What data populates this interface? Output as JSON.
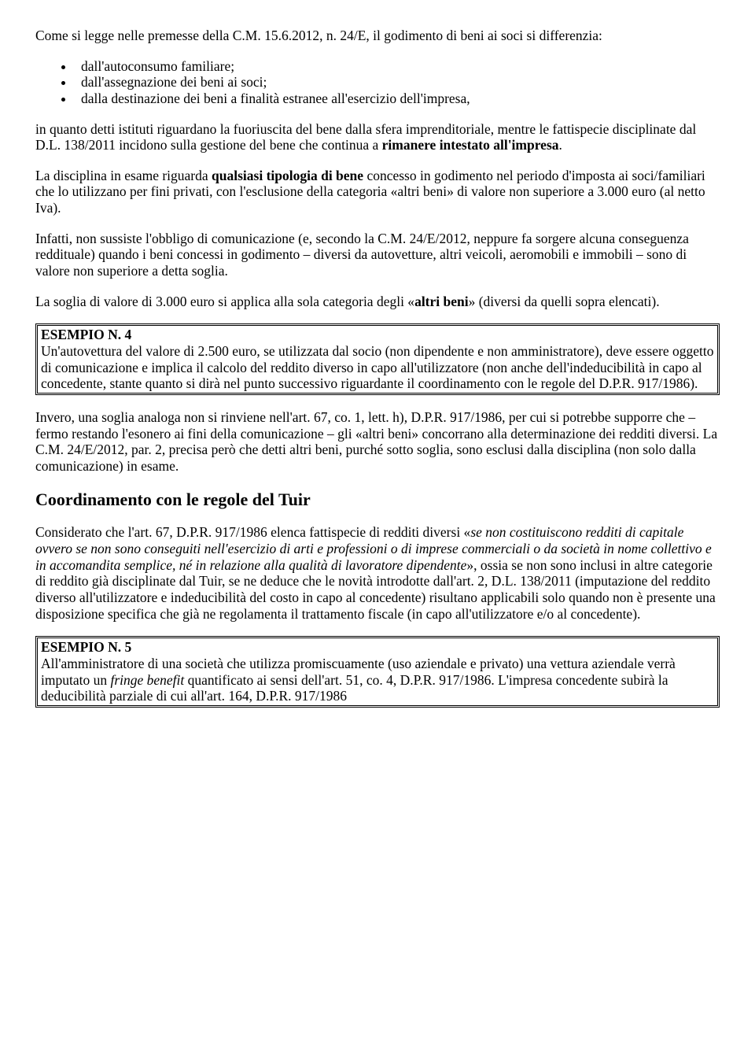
{
  "p1": "Come si legge nelle premesse della C.M. 15.6.2012, n. 24/E, il godimento di beni ai soci si differenzia:",
  "bullets": {
    "b1": "dall'autoconsumo familiare;",
    "b2": "dall'assegnazione dei beni ai soci;",
    "b3": "dalla destinazione dei beni a finalità estranee all'esercizio dell'impresa,"
  },
  "p2a": "in quanto detti istituti riguardano la fuoriuscita del bene dalla sfera imprenditoriale, mentre le fattispecie disciplinate dal D.L. 138/2011 incidono sulla gestione del bene che continua a ",
  "p2b": "rimanere intestato all'impresa",
  "p2c": ".",
  "p3a": "La disciplina in esame riguarda ",
  "p3b": "qualsiasi tipologia di bene",
  "p3c": " concesso in godimento nel periodo d'imposta ai soci/familiari che lo utilizzano per fini privati, con l'esclusione della categoria «altri beni» di valore non superiore a 3.000 euro (al netto Iva).",
  "p4": "Infatti, non sussiste l'obbligo di comunicazione (e, secondo la C.M. 24/E/2012, neppure fa sorgere alcuna conseguenza reddituale) quando i beni concessi in godimento – diversi da autovetture, altri veicoli, aeromobili e immobili – sono di valore non superiore a detta soglia.",
  "p5a": "La soglia di valore di 3.000 euro si applica alla sola categoria degli «",
  "p5b": "altri beni",
  "p5c": "» (diversi da quelli sopra elencati).",
  "box1": {
    "title": "ESEMPIO N. 4",
    "body": "Un'autovettura del valore di 2.500 euro, se utilizzata dal socio (non dipendente e non amministratore), deve essere oggetto di comunicazione e implica il calcolo del reddito diverso in capo all'utilizzatore (non anche dell'indeducibilità in capo al concedente, stante quanto si dirà nel punto successivo riguardante il coordinamento con le regole del D.P.R. 917/1986)."
  },
  "p6": "Invero, una soglia analoga non si rinviene nell'art. 67, co. 1, lett. h), D.P.R. 917/1986, per cui si potrebbe supporre che – fermo restando l'esonero ai fini della comunicazione – gli «altri beni» concorrano alla determinazione dei redditi diversi. La C.M. 24/E/2012, par. 2, precisa però che detti altri beni, purché sotto soglia, sono esclusi dalla disciplina (non solo dalla comunicazione) in esame.",
  "h1": "Coordinamento con le regole del Tuir",
  "p7a": "Considerato che l'art. 67, D.P.R. 917/1986 elenca fattispecie di redditi diversi «",
  "p7b": "se non costituiscono redditi di capitale ovvero se non sono conseguiti nell'esercizio di arti e professioni o di imprese commerciali o da società in nome collettivo e in accomandita semplice, né in relazione alla qualità di lavoratore dipendente",
  "p7c": "», ossia se non sono inclusi in altre categorie di reddito già disciplinate dal Tuir, se ne deduce che le novità introdotte dall'art. 2, D.L. 138/2011 (imputazione del reddito diverso all'utilizzatore e indeducibilità del costo in capo al concedente) risultano applicabili solo quando non è presente una disposizione specifica che già ne regolamenta il trattamento fiscale (in capo all'utilizzatore e/o al concedente).",
  "box2": {
    "title": "ESEMPIO N. 5",
    "body_a": "All'amministratore di una società che utilizza promiscuamente (uso aziendale e privato) una vettura aziendale verrà imputato un ",
    "body_b": "fringe benefit",
    "body_c": " quantificato ai sensi dell'art. 51, co. 4, D.P.R. 917/1986. L'impresa concedente subirà la deducibilità parziale di cui all'art. 164, D.P.R. 917/1986"
  }
}
